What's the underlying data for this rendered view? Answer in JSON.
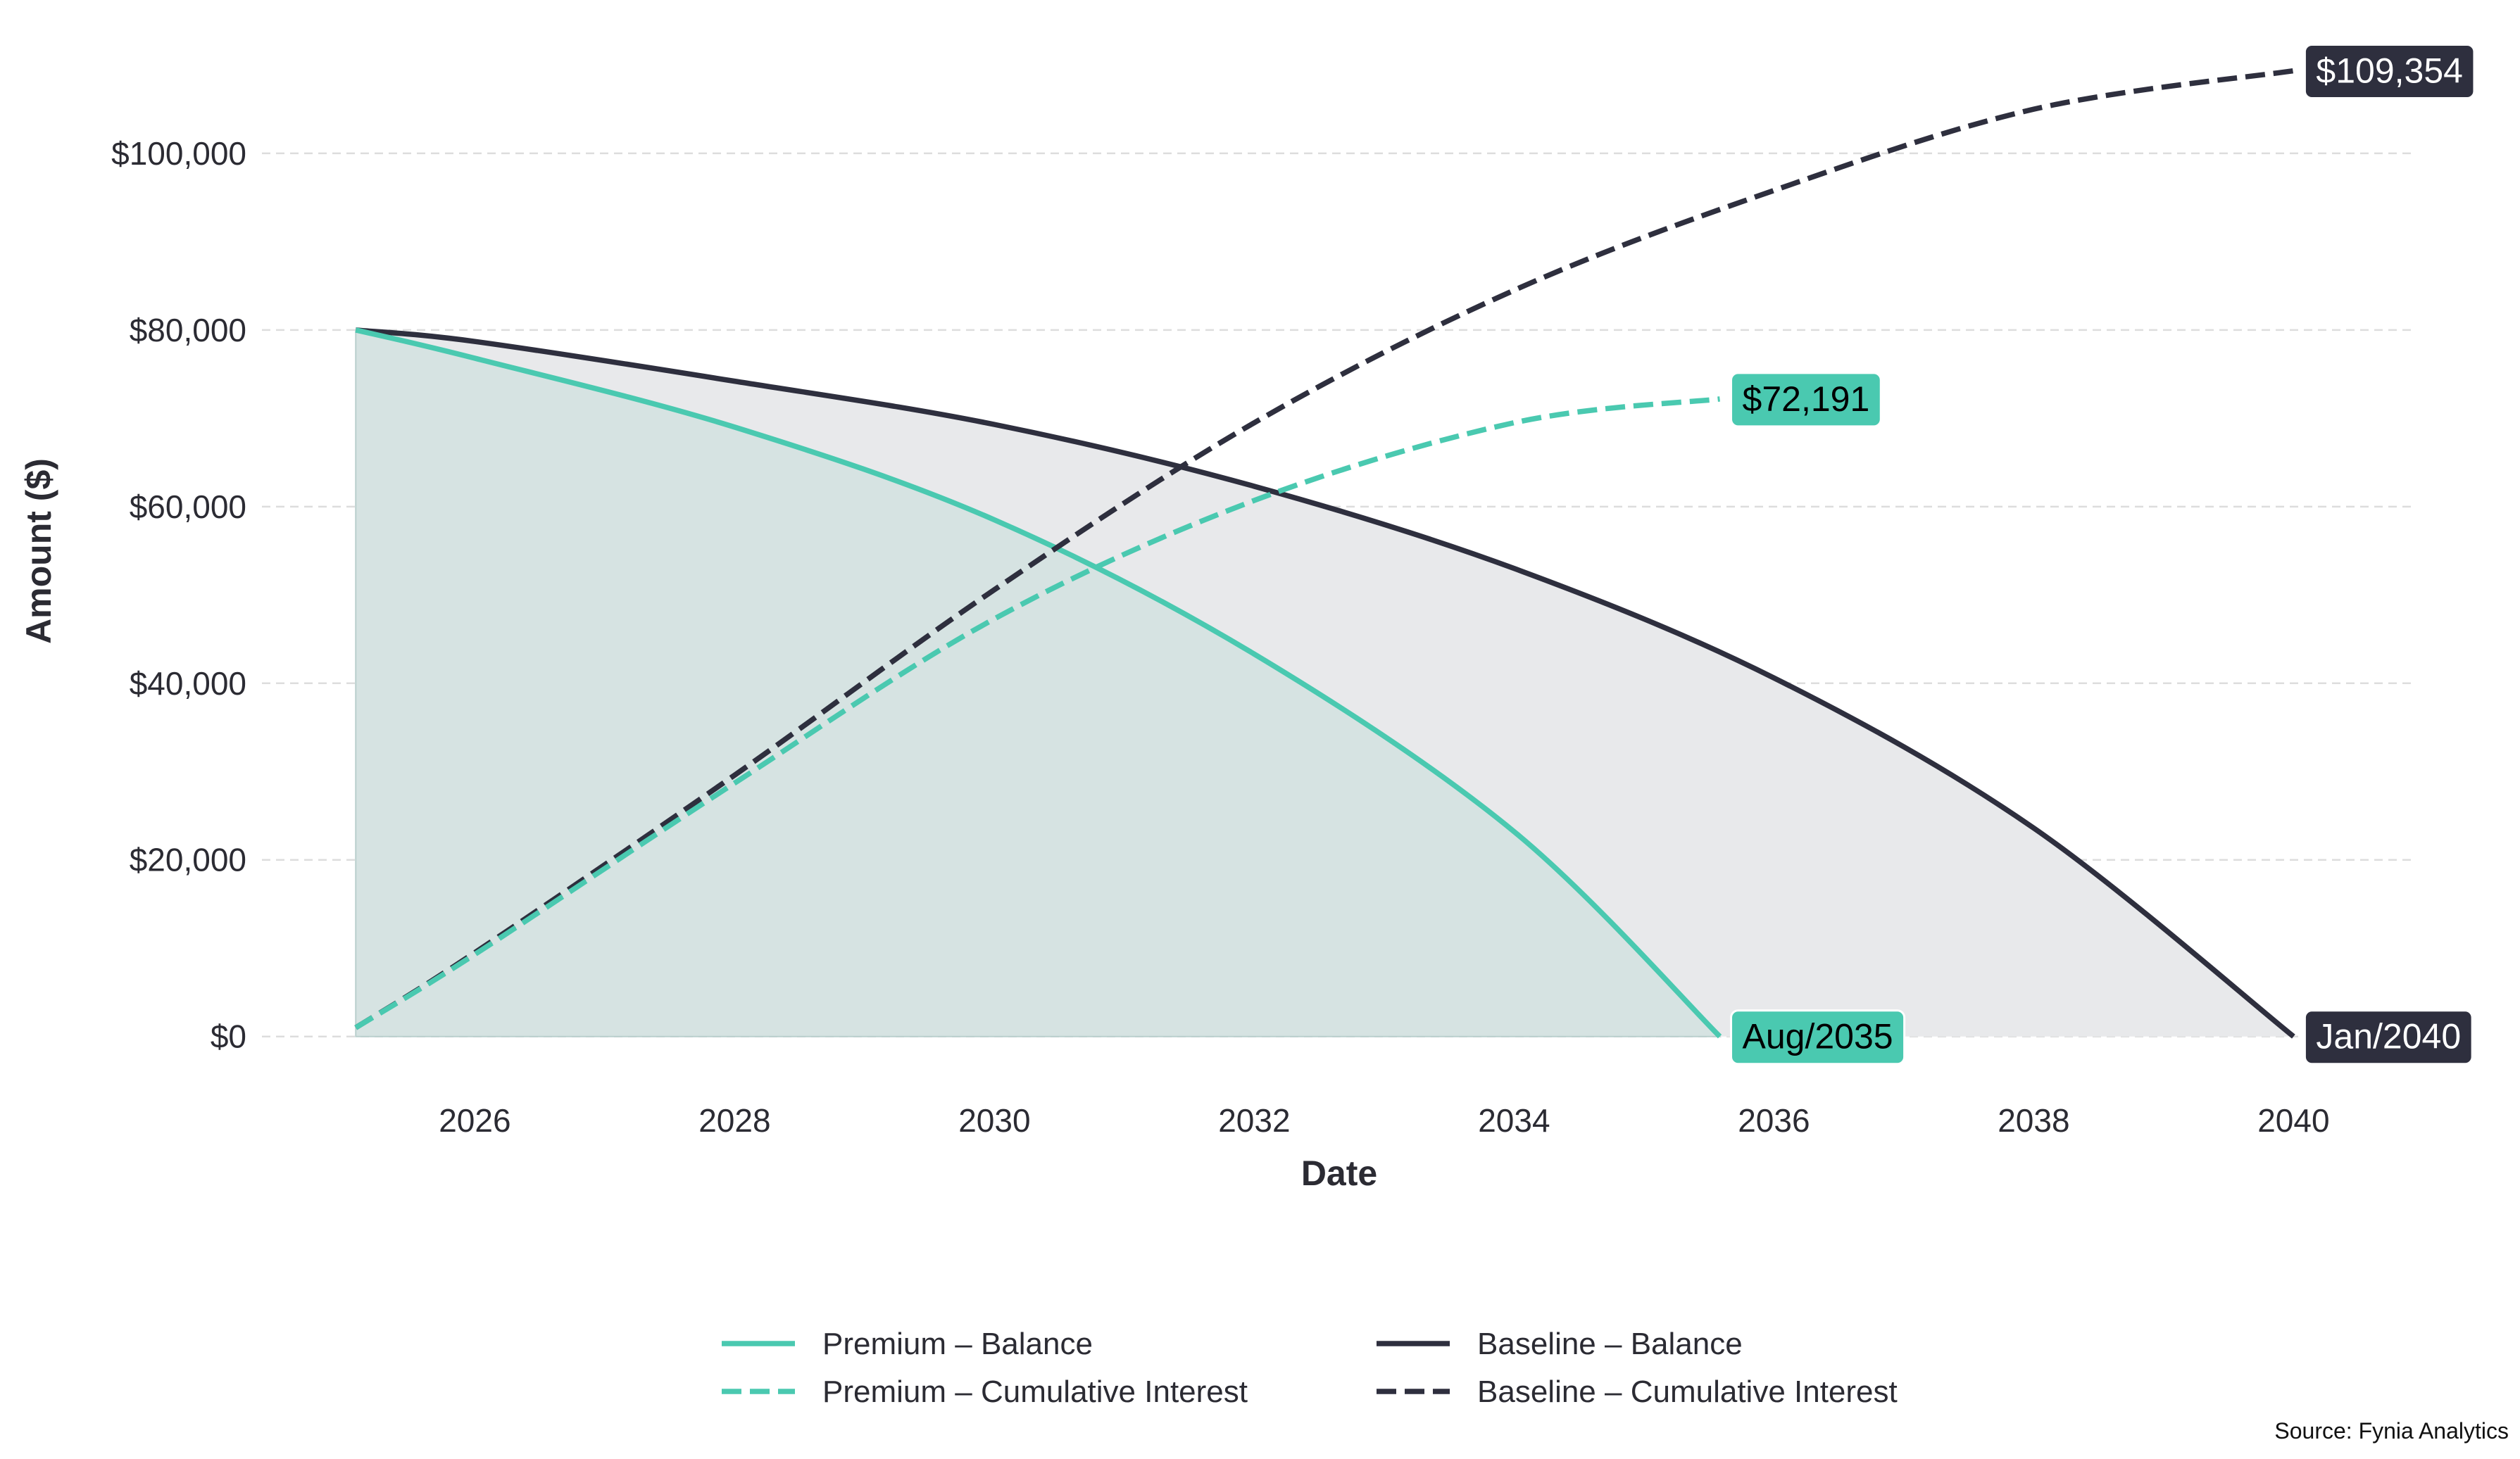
{
  "chart_data": {
    "type": "line",
    "title": "",
    "xlabel": "Date",
    "ylabel": "Amount ($)",
    "xlim": [
      "2024-05",
      "2040-12"
    ],
    "ylim": [
      0,
      110000
    ],
    "x_ticks": [
      "2026",
      "2028",
      "2030",
      "2032",
      "2034",
      "2036",
      "2038",
      "2040"
    ],
    "y_ticks": [
      {
        "value": 0,
        "label": "$0"
      },
      {
        "value": 20000,
        "label": "$20,000"
      },
      {
        "value": 40000,
        "label": "$40,000"
      },
      {
        "value": 60000,
        "label": "$60,000"
      },
      {
        "value": 80000,
        "label": "$80,000"
      },
      {
        "value": 100000,
        "label": "$100,000"
      }
    ],
    "grid": "horizontal dashed",
    "legend_placement": "bottom",
    "colors": {
      "premium": "#4ac9b0",
      "baseline": "#2e2f3e",
      "premium_fill": "#d6e3e2",
      "baseline_fill": "#e8e9eb",
      "grid": "#dddddd"
    },
    "series": [
      {
        "name": "Premium – Balance",
        "color": "#4ac9b0",
        "dash": false,
        "fill": true,
        "points": [
          [
            "2025-02",
            80000
          ],
          [
            "2026-01",
            76800
          ],
          [
            "2028-01",
            69000
          ],
          [
            "2030-01",
            58500
          ],
          [
            "2032-01",
            43300
          ],
          [
            "2034-01",
            23200
          ],
          [
            "2035-08",
            0
          ]
        ]
      },
      {
        "name": "Premium – Cumulative Interest",
        "color": "#4ac9b0",
        "dash": true,
        "points": [
          [
            "2025-02",
            1000
          ],
          [
            "2026-01",
            9300
          ],
          [
            "2028-01",
            28700
          ],
          [
            "2030-01",
            47300
          ],
          [
            "2032-01",
            60700
          ],
          [
            "2034-01",
            69500
          ],
          [
            "2035-08",
            72191
          ]
        ]
      },
      {
        "name": "Baseline – Balance",
        "color": "#2e2f3e",
        "dash": false,
        "fill": true,
        "points": [
          [
            "2025-02",
            80000
          ],
          [
            "2026-01",
            78700
          ],
          [
            "2028-01",
            74200
          ],
          [
            "2030-01",
            69300
          ],
          [
            "2032-01",
            62300
          ],
          [
            "2034-01",
            53000
          ],
          [
            "2036-01",
            40600
          ],
          [
            "2038-01",
            23600
          ],
          [
            "2040-01",
            0
          ]
        ]
      },
      {
        "name": "Baseline – Cumulative Interest",
        "color": "#2e2f3e",
        "dash": true,
        "points": [
          [
            "2025-02",
            1000
          ],
          [
            "2026-01",
            9500
          ],
          [
            "2028-01",
            29600
          ],
          [
            "2030-01",
            50600
          ],
          [
            "2032-01",
            69500
          ],
          [
            "2034-01",
            84500
          ],
          [
            "2036-01",
            95800
          ],
          [
            "2038-01",
            105000
          ],
          [
            "2040-01",
            109354
          ]
        ]
      }
    ],
    "annotations": [
      {
        "text": "$109,354",
        "at": [
          "2040-01",
          109354
        ],
        "bg": "#2e2f3e",
        "fg": "#ffffff"
      },
      {
        "text": "$72,191",
        "at": [
          "2035-08",
          72191
        ],
        "bg": "#4ac9b0",
        "fg": "#000000"
      },
      {
        "text": "Aug/2035",
        "at": [
          "2035-08",
          0
        ],
        "bg": "#4ac9b0",
        "fg": "#000000"
      },
      {
        "text": "Jan/2040",
        "at": [
          "2040-01",
          0
        ],
        "bg": "#2e2f3e",
        "fg": "#ffffff"
      }
    ],
    "source": "Source: Fynia Analytics"
  }
}
